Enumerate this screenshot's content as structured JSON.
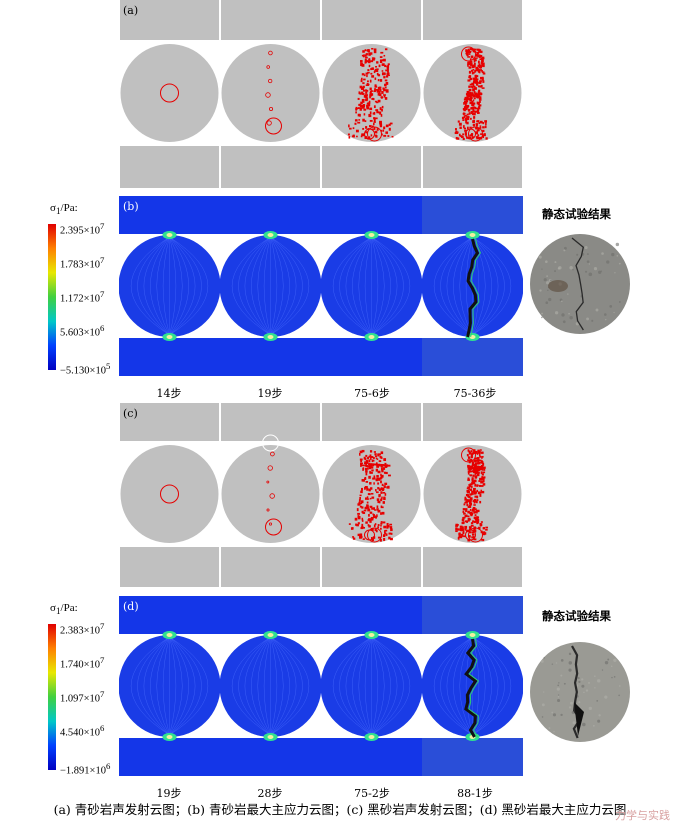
{
  "panels": {
    "a": {
      "label": "(a)"
    },
    "b": {
      "label": "(b)",
      "colorbar_title": "σ1/Pa:",
      "ticks": [
        "2.395×10^7",
        "1.783×10^7",
        "1.172×10^7",
        "5.603×10^6",
        "−5.130×10^5"
      ],
      "steps": [
        "14步",
        "19步",
        "75-6步",
        "75-36步"
      ],
      "static_label": "静态试验结果"
    },
    "c": {
      "label": "(c)"
    },
    "d": {
      "label": "(d)",
      "colorbar_title": "σ1/Pa:",
      "ticks": [
        "2.383×10^7",
        "1.740×10^7",
        "1.097×10^7",
        "4.540×10^6",
        "−1.891×10^6"
      ],
      "steps": [
        "19步",
        "28步",
        "75-2步",
        "88-1步"
      ],
      "static_label": "静态试验结果"
    }
  },
  "caption": "(a) 青砂岩声发射云图；(b) 青砂岩最大主应力云图；(c) 黑砂岩声发射云图；(d) 黑砂岩最大主应力云图",
  "watermark": "力学与实践",
  "colors": {
    "gray": "#c0c0c0",
    "ae_red": "#e60000",
    "stress_blue": "#1432e6",
    "colorbar": [
      "#e00000",
      "#ffb000",
      "#e8e800",
      "#40d040",
      "#00c8c8",
      "#0040ff",
      "#0000c0"
    ]
  }
}
